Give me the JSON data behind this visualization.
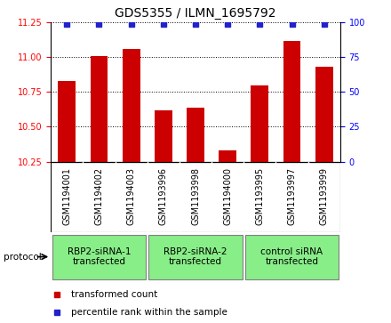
{
  "title": "GDS5355 / ILMN_1695792",
  "samples": [
    "GSM1194001",
    "GSM1194002",
    "GSM1194003",
    "GSM1193996",
    "GSM1193998",
    "GSM1194000",
    "GSM1193995",
    "GSM1193997",
    "GSM1193999"
  ],
  "bar_values": [
    10.83,
    11.01,
    11.06,
    10.62,
    10.64,
    10.33,
    10.8,
    11.12,
    10.93
  ],
  "percentile_values": [
    100,
    100,
    100,
    100,
    100,
    99,
    100,
    100,
    100
  ],
  "ylim_left": [
    10.25,
    11.25
  ],
  "ylim_right": [
    0,
    100
  ],
  "yticks_left": [
    10.25,
    10.5,
    10.75,
    11.0,
    11.25
  ],
  "yticks_right": [
    0,
    25,
    50,
    75,
    100
  ],
  "bar_color": "#CC0000",
  "dot_color": "#2222CC",
  "groups": [
    {
      "label": "RBP2-siRNA-1\ntransfected",
      "start": 0,
      "end": 3,
      "color": "#88EE88"
    },
    {
      "label": "RBP2-siRNA-2\ntransfected",
      "start": 3,
      "end": 6,
      "color": "#88EE88"
    },
    {
      "label": "control siRNA\ntransfected",
      "start": 6,
      "end": 9,
      "color": "#88EE88"
    }
  ],
  "legend_bar_label": "transformed count",
  "legend_dot_label": "percentile rank within the sample",
  "protocol_label": "protocol",
  "background_gray": "#D3D3D3",
  "title_fontsize": 10,
  "tick_fontsize": 7,
  "label_fontsize": 7.5,
  "group_fontsize": 7.5
}
